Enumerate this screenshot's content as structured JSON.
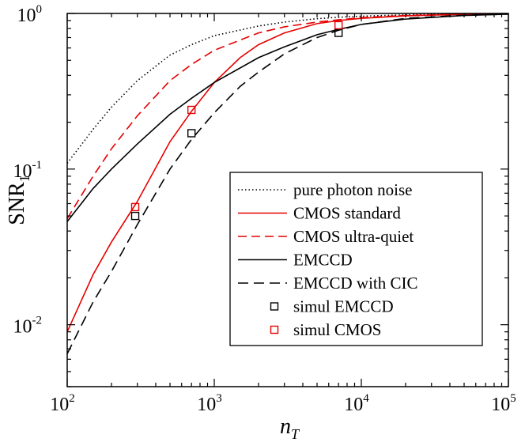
{
  "chart_data": {
    "type": "line",
    "title": "",
    "xlabel": {
      "base": "n",
      "sub": "T"
    },
    "ylabel": {
      "base": "SNR",
      "sub": "1"
    },
    "xscale": "log",
    "yscale": "log",
    "xlim": [
      100,
      100000
    ],
    "ylim": [
      0.004,
      1
    ],
    "xticks": [
      {
        "value": 100,
        "base": "10",
        "exp": "2"
      },
      {
        "value": 1000,
        "base": "10",
        "exp": "3"
      },
      {
        "value": 10000,
        "base": "10",
        "exp": "4"
      },
      {
        "value": 100000,
        "base": "10",
        "exp": "5"
      }
    ],
    "yticks": [
      {
        "value": 0.01,
        "base": "10",
        "exp": "-2"
      },
      {
        "value": 0.1,
        "base": "10",
        "exp": "-1"
      },
      {
        "value": 1,
        "base": "10",
        "exp": "0"
      }
    ],
    "grid": false,
    "legend_position": "bottom-right",
    "series": [
      {
        "name": "pure photon noise",
        "color": "#000000",
        "dash": "dotted",
        "x": [
          100,
          150,
          200,
          300,
          500,
          700,
          1000,
          2000,
          3000,
          5000,
          7000,
          10000,
          20000,
          50000,
          100000
        ],
        "y": [
          0.109,
          0.18,
          0.25,
          0.37,
          0.54,
          0.63,
          0.72,
          0.83,
          0.88,
          0.925,
          0.945,
          0.96,
          0.98,
          0.993,
          0.998
        ]
      },
      {
        "name": "CMOS standard",
        "color": "#e60000",
        "dash": "solid",
        "x": [
          100,
          150,
          200,
          300,
          500,
          700,
          1000,
          1500,
          2000,
          3000,
          5000,
          7000,
          10000,
          20000,
          50000,
          100000
        ],
        "y": [
          0.009,
          0.021,
          0.034,
          0.062,
          0.15,
          0.235,
          0.36,
          0.52,
          0.63,
          0.75,
          0.86,
          0.9,
          0.93,
          0.965,
          0.988,
          0.996
        ]
      },
      {
        "name": "CMOS ultra-quiet",
        "color": "#e60000",
        "dash": "dashed",
        "x": [
          100,
          150,
          200,
          300,
          500,
          700,
          1000,
          2000,
          3000,
          5000,
          7000,
          10000,
          20000,
          50000,
          100000
        ],
        "y": [
          0.048,
          0.09,
          0.135,
          0.22,
          0.37,
          0.47,
          0.58,
          0.75,
          0.82,
          0.88,
          0.91,
          0.94,
          0.97,
          0.99,
          0.997
        ]
      },
      {
        "name": "EMCCD",
        "color": "#000000",
        "dash": "solid",
        "x": [
          100,
          150,
          200,
          300,
          500,
          700,
          1000,
          2000,
          3000,
          5000,
          7000,
          10000,
          20000,
          50000,
          100000
        ],
        "y": [
          0.046,
          0.075,
          0.1,
          0.145,
          0.225,
          0.285,
          0.36,
          0.52,
          0.61,
          0.73,
          0.79,
          0.85,
          0.92,
          0.97,
          0.99
        ]
      },
      {
        "name": "EMCCD with CIC",
        "color": "#000000",
        "dash": "longdash",
        "x": [
          100,
          150,
          200,
          300,
          500,
          700,
          1000,
          1500,
          2000,
          3000,
          5000,
          7000,
          10000,
          20000,
          50000,
          100000
        ],
        "y": [
          0.0065,
          0.014,
          0.022,
          0.044,
          0.1,
          0.155,
          0.23,
          0.34,
          0.42,
          0.55,
          0.7,
          0.78,
          0.85,
          0.93,
          0.975,
          0.99
        ]
      }
    ],
    "markers": [
      {
        "name": "simul EMCCD",
        "color": "#000000",
        "x": [
          290,
          700,
          7000
        ],
        "y": [
          0.05,
          0.17,
          0.75
        ]
      },
      {
        "name": "simul CMOS",
        "color": "#e60000",
        "x": [
          290,
          700,
          7000
        ],
        "y": [
          0.057,
          0.24,
          0.84
        ]
      }
    ]
  }
}
